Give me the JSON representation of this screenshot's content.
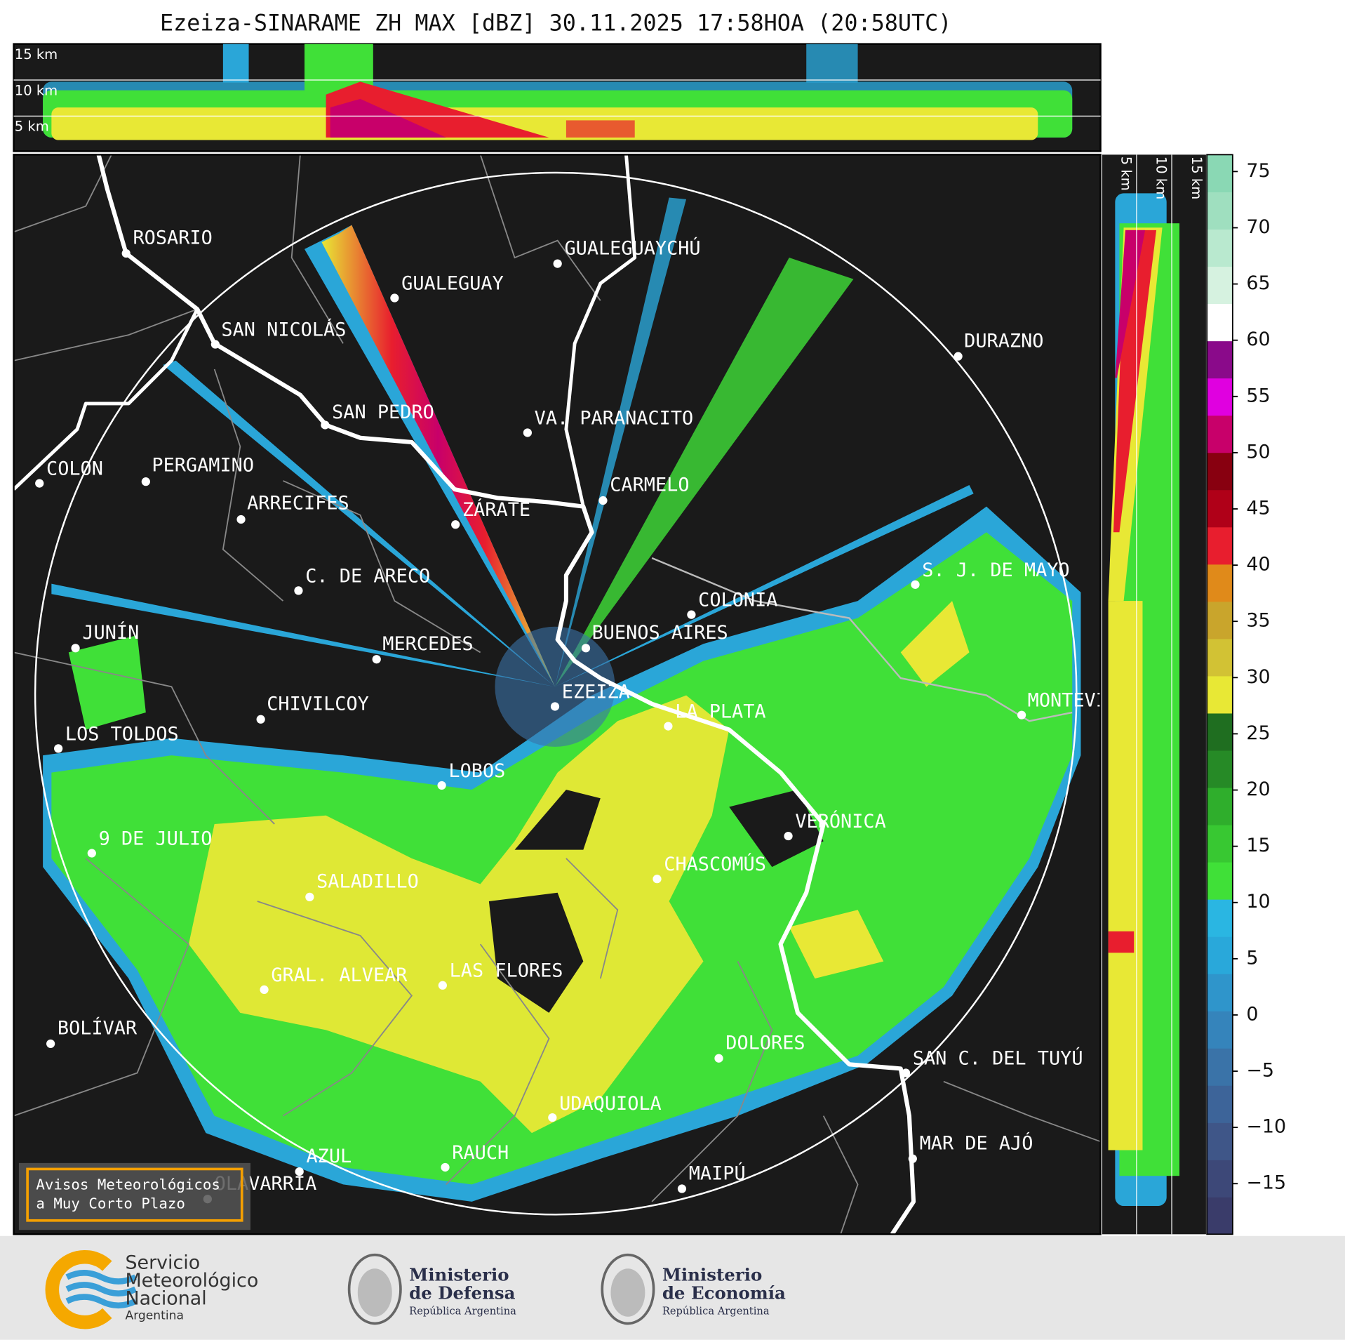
{
  "title": "Ezeiza-SINARAME ZH MAX [dBZ] 30.11.2025 17:58HOA (20:58UTC)",
  "top_panel": {
    "labels": [
      "15 km",
      "10 km",
      "5 km"
    ]
  },
  "side_panel": {
    "labels": [
      "5 km",
      "10 km",
      "15 km"
    ]
  },
  "colorbar": {
    "lim": [
      -19.5,
      76.5
    ],
    "ticks": [
      75,
      70,
      65,
      60,
      55,
      50,
      45,
      40,
      35,
      30,
      25,
      20,
      15,
      10,
      5,
      0,
      {
        "value": -5,
        "label": "−5"
      },
      {
        "value": -10,
        "label": "−10"
      },
      {
        "value": -15,
        "label": "−15"
      }
    ],
    "colors": [
      "#3a3c6a",
      "#3d4878",
      "#3f5688",
      "#3d6499",
      "#3a73a8",
      "#3584bb",
      "#2f95cb",
      "#29a8da",
      "#2ab6e2",
      "#40e038",
      "#38c832",
      "#2fae2c",
      "#268a26",
      "#1f6e20",
      "#e8e835",
      "#d2c234",
      "#c9a52c",
      "#e08a1a",
      "#e81e2e",
      "#b00018",
      "#880010",
      "#c8006a",
      "#e000e0",
      "#8a0a8a",
      "#ffffff",
      "#d6f2e0",
      "#b9e9cf",
      "#9fdfbf",
      "#8ad8b4"
    ]
  },
  "cities": [
    "ROSARIO",
    "GUALEGUAYCHÚ",
    "GUALEGUAY",
    "SAN NICOLÁS",
    "DURAZNO",
    "SAN PEDRO",
    "VA. PARANACITO",
    "COLON",
    "PERGAMINO",
    "CARMELO",
    "ARRECIFES",
    "ZÁRATE",
    "C. DE ARECO",
    "S. J. DE MAYO",
    "COLONIA",
    "JUNÍN",
    "BUENOS AIRES",
    "MERCEDES",
    "EZEIZA",
    "MONTEVIDEO",
    "CHIVILCOY",
    "LA PLATA",
    "LOS TOLDOS",
    "LOBOS",
    "VERÓNICA",
    "9 DE JULIO",
    "CHASCOMÚS",
    "SALADILLO",
    "GRAL. ALVEAR",
    "LAS FLORES",
    "BOLÍVAR",
    "DOLORES",
    "SAN C. DEL TUYÚ",
    "UDAQUIOLA",
    "MAR DE AJÓ",
    "RAUCH",
    "AZUL",
    "OLAVARRÍA",
    "MAIPÚ"
  ],
  "warning": {
    "lines": [
      "Avisos Meteorológicos",
      "a Muy Corto Plazo"
    ]
  },
  "logos": {
    "smn": [
      "Servicio",
      "Meteorológico",
      "Nacional",
      "Argentina"
    ],
    "defensa": [
      "Ministerio",
      "de Defensa",
      "República Argentina"
    ],
    "economia": [
      "Ministerio",
      "de Economía",
      "República Argentina"
    ]
  }
}
